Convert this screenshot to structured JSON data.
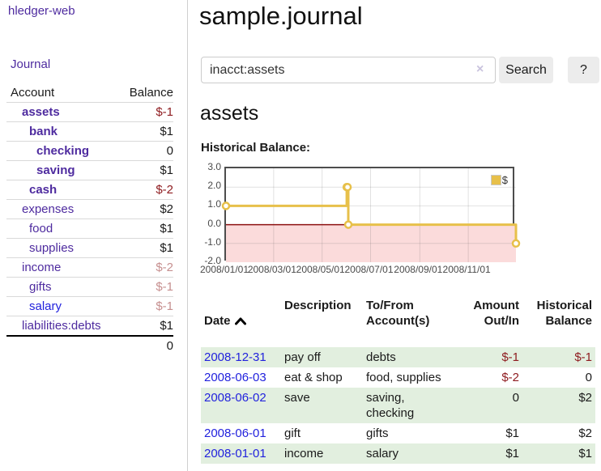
{
  "colors": {
    "link_purple": "#4e2b9f",
    "link_blue": "#2222dd",
    "negative_dark_red": "#8f1d21",
    "negative_light_red": "#c68f8f",
    "row_green": "#e2efdf",
    "chart_line_gold": "#e7c04a",
    "chart_negative_pink": "#fbdbdb",
    "chart_zero_line_red": "#8b1010",
    "button_gray": "#ececec"
  },
  "sidebar": {
    "app_title": "hledger-web",
    "journal_link": "Journal",
    "table": {
      "account_header": "Account",
      "balance_header": "Balance",
      "rows": [
        {
          "name": "assets",
          "level": 1,
          "bold": true,
          "link": "purple",
          "balance": "$-1",
          "balance_style": "neg",
          "balance_bold": true
        },
        {
          "name": "bank",
          "level": 2,
          "bold": true,
          "link": "purple",
          "balance": "$1",
          "balance_style": "black",
          "balance_bold": true
        },
        {
          "name": "checking",
          "level": 3,
          "bold": true,
          "link": "purple",
          "balance": "0",
          "balance_style": "black",
          "balance_bold": true
        },
        {
          "name": "saving",
          "level": 3,
          "bold": true,
          "link": "purple",
          "balance": "$1",
          "balance_style": "black",
          "balance_bold": true
        },
        {
          "name": "cash",
          "level": 2,
          "bold": true,
          "link": "purple",
          "balance": "$-2",
          "balance_style": "neg",
          "balance_bold": true
        },
        {
          "name": "expenses",
          "level": 1,
          "bold": false,
          "link": "purple",
          "balance": "$2",
          "balance_style": "black",
          "balance_bold": false
        },
        {
          "name": "food",
          "level": 2,
          "bold": false,
          "link": "purple",
          "balance": "$1",
          "balance_style": "black",
          "balance_bold": false
        },
        {
          "name": "supplies",
          "level": 2,
          "bold": false,
          "link": "purple",
          "balance": "$1",
          "balance_style": "black",
          "balance_bold": false
        },
        {
          "name": "income",
          "level": 1,
          "bold": false,
          "link": "purple",
          "balance": "$-2",
          "balance_style": "neglight",
          "balance_bold": false
        },
        {
          "name": "gifts",
          "level": 2,
          "bold": false,
          "link": "purple",
          "balance": "$-1",
          "balance_style": "neglight",
          "balance_bold": false
        },
        {
          "name": "salary",
          "level": 2,
          "bold": false,
          "link": "blue",
          "balance": "$-1",
          "balance_style": "neglight",
          "balance_bold": false
        },
        {
          "name": "liabilities:debts",
          "level": 1,
          "bold": false,
          "link": "purple",
          "balance": "$1",
          "balance_style": "black",
          "balance_bold": false
        }
      ],
      "total": "0"
    }
  },
  "main": {
    "title": "sample.journal",
    "search": {
      "value": "inacct:assets",
      "clear_icon": "×",
      "search_button": "Search",
      "help_button": "?"
    },
    "account_heading": "assets",
    "chart_label": "Historical Balance:",
    "transactions": {
      "headers": {
        "date": "Date",
        "description": "Description",
        "to_from": "To/From\nAccount(s)",
        "amount": "Amount\nOut/In",
        "historical": "Historical\nBalance"
      },
      "rows": [
        {
          "date": "2008-12-31",
          "description": "pay off",
          "to_from": "debts",
          "amount": "$-1",
          "amount_neg": true,
          "historical": "$-1",
          "historical_neg": true
        },
        {
          "date": "2008-06-03",
          "description": "eat & shop",
          "to_from": "food, supplies",
          "amount": "$-2",
          "amount_neg": true,
          "historical": "0",
          "historical_neg": false
        },
        {
          "date": "2008-06-02",
          "description": "save",
          "to_from": "saving,\nchecking",
          "amount": "0",
          "amount_neg": false,
          "historical": "$2",
          "historical_neg": false
        },
        {
          "date": "2008-06-01",
          "description": "gift",
          "to_from": "gifts",
          "amount": "$1",
          "amount_neg": false,
          "historical": "$2",
          "historical_neg": false
        },
        {
          "date": "2008-01-01",
          "description": "income",
          "to_from": "salary",
          "amount": "$1",
          "amount_neg": false,
          "historical": "$1",
          "historical_neg": false
        }
      ]
    }
  },
  "chart_data": {
    "type": "line",
    "title": "Historical Balance:",
    "step": true,
    "series": [
      {
        "name": "$",
        "points": [
          [
            "2008-01-01",
            1
          ],
          [
            "2008-06-01",
            2
          ],
          [
            "2008-06-02",
            2
          ],
          [
            "2008-06-03",
            0
          ],
          [
            "2008-12-31",
            -1
          ]
        ]
      }
    ],
    "x_ticks": [
      "2008/01/01",
      "2008/03/01",
      "2008/05/01",
      "2008/07/01",
      "2008/09/01",
      "2008/11/01"
    ],
    "y_ticks": [
      "3.0",
      "2.0",
      "1.0",
      "0.0",
      "-1.0",
      "-2.0"
    ],
    "ylim": [
      -2,
      3
    ],
    "xlim": [
      "2008-01-01",
      "2008-12-31"
    ],
    "grid": true,
    "legend": {
      "position": "top-right",
      "label": "$"
    },
    "negative_region_shaded": true
  }
}
